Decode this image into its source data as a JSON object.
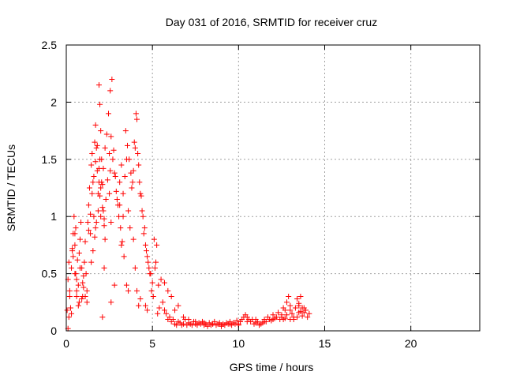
{
  "chart_data": {
    "type": "scatter",
    "title": "Day 031 of 2016, SRMTID for receiver cruz",
    "xlabel": "GPS time / hours",
    "ylabel": "SRMTID / TECUs",
    "xlim": [
      0,
      24
    ],
    "ylim": [
      0,
      2.5
    ],
    "xticks": [
      0,
      5,
      10,
      15,
      20
    ],
    "xtick_labels": [
      "0",
      "5",
      "10",
      "15",
      "20"
    ],
    "yticks": [
      0,
      0.5,
      1,
      1.5,
      2,
      2.5
    ],
    "ytick_labels": [
      "0",
      "0.5",
      "1",
      "1.5",
      "2",
      "2.5"
    ],
    "grid": true,
    "marker": "+",
    "series": [
      {
        "name": "SRMTID",
        "color": "#ff0000",
        "x": [
          0.05,
          0.1,
          0.15,
          0.2,
          0.25,
          0.3,
          0.35,
          0.4,
          0.45,
          0.5,
          0.55,
          0.6,
          0.65,
          0.7,
          0.75,
          0.8,
          0.85,
          0.9,
          0.95,
          1.0,
          0.1,
          0.2,
          0.3,
          0.4,
          0.5,
          0.6,
          0.7,
          0.8,
          0.9,
          1.0,
          0.15,
          0.35,
          0.55,
          0.75,
          0.95,
          1.05,
          1.1,
          1.15,
          1.2,
          1.25,
          1.3,
          1.35,
          1.4,
          1.45,
          1.5,
          1.55,
          1.6,
          1.65,
          1.7,
          1.75,
          1.8,
          1.85,
          1.9,
          1.95,
          2.0,
          2.05,
          2.1,
          2.15,
          2.2,
          2.25,
          1.3,
          1.4,
          1.5,
          1.6,
          1.7,
          1.8,
          1.9,
          2.0,
          2.1,
          2.2,
          2.3,
          2.4,
          2.5,
          2.6,
          2.7,
          2.8,
          2.9,
          3.0,
          3.1,
          3.2,
          1.45,
          1.55,
          1.65,
          1.75,
          1.85,
          1.95,
          2.05,
          2.15,
          2.25,
          2.35,
          2.45,
          2.55,
          2.65,
          2.75,
          2.85,
          2.95,
          3.05,
          3.15,
          3.25,
          3.35,
          3.3,
          3.4,
          3.5,
          3.6,
          3.7,
          3.8,
          3.9,
          4.0,
          4.1,
          4.2,
          4.3,
          4.4,
          4.5,
          4.6,
          4.7,
          4.8,
          4.9,
          5.0,
          5.1,
          5.2,
          3.45,
          3.55,
          3.65,
          3.75,
          3.85,
          3.95,
          4.05,
          4.15,
          4.25,
          4.35,
          4.45,
          4.55,
          4.65,
          4.75,
          4.85,
          4.95,
          5.05,
          5.15,
          5.25,
          5.35,
          1.9,
          1.95,
          2.0,
          2.5,
          2.55,
          2.6,
          3.1,
          3.2,
          3.3,
          3.9,
          4.0,
          4.1,
          1.7,
          2.2,
          2.8,
          3.6,
          4.3,
          4.6,
          5.4,
          5.5,
          0.5,
          0.6,
          1.1,
          1.2,
          2.1,
          2.6,
          3.5,
          4.2,
          4.7,
          5.3,
          5.6,
          5.7,
          5.8,
          5.9,
          6.0,
          6.1,
          6.2,
          6.3,
          6.4,
          6.5,
          6.6,
          6.7,
          6.8,
          6.9,
          7.0,
          7.1,
          7.2,
          7.3,
          7.4,
          7.5,
          7.6,
          7.7,
          7.8,
          7.9,
          8.0,
          8.1,
          8.2,
          8.3,
          8.4,
          8.5,
          8.6,
          8.7,
          8.8,
          8.9,
          9.0,
          9.1,
          9.2,
          9.3,
          9.4,
          9.5,
          9.6,
          9.7,
          9.8,
          9.9,
          10.0,
          10.1,
          10.2,
          10.3,
          10.4,
          10.5,
          10.6,
          10.7,
          10.8,
          10.9,
          11.0,
          11.1,
          11.2,
          11.3,
          11.4,
          11.5,
          11.6,
          11.7,
          11.8,
          11.9,
          12.0,
          12.1,
          12.2,
          12.3,
          12.4,
          12.5,
          12.6,
          12.7,
          12.8,
          12.9,
          13.0,
          13.1,
          13.2,
          13.3,
          13.4,
          13.5,
          13.6,
          13.7,
          13.8,
          13.9,
          14.0,
          14.1,
          12.6,
          12.8,
          13.0,
          13.4,
          13.5,
          13.6,
          13.7,
          12.7,
          13.2,
          13.8,
          5.7,
          5.9,
          6.1,
          6.3,
          6.5,
          6.8,
          7.1,
          7.5,
          8.0,
          8.5,
          9.0,
          9.5,
          10.0,
          10.5,
          11.0,
          11.5,
          12.0,
          12.5,
          13.0,
          13.5
        ],
        "y": [
          0.18,
          0.45,
          0.6,
          0.35,
          0.2,
          0.55,
          0.7,
          0.85,
          1.0,
          0.75,
          0.5,
          0.3,
          0.62,
          0.4,
          0.25,
          0.8,
          0.95,
          0.55,
          0.3,
          0.48,
          0.02,
          0.3,
          0.15,
          0.65,
          0.85,
          0.45,
          0.22,
          0.55,
          0.28,
          0.38,
          0.12,
          0.72,
          0.9,
          0.68,
          0.42,
          0.6,
          0.78,
          0.5,
          0.35,
          0.95,
          1.1,
          1.25,
          0.85,
          1.45,
          1.55,
          1.3,
          1.0,
          1.65,
          1.8,
          1.6,
          1.4,
          1.2,
          2.15,
          1.98,
          1.75,
          1.5,
          1.28,
          1.05,
          0.92,
          0.8,
          0.88,
          1.02,
          1.2,
          1.35,
          1.48,
          1.62,
          1.42,
          1.25,
          1.08,
          0.98,
          1.15,
          1.32,
          1.55,
          1.7,
          1.5,
          1.38,
          1.22,
          1.1,
          1.3,
          1.45,
          0.6,
          0.7,
          0.82,
          0.95,
          1.05,
          1.18,
          1.3,
          1.42,
          1.6,
          1.72,
          1.9,
          2.1,
          2.2,
          1.58,
          1.35,
          1.15,
          1.0,
          0.9,
          0.78,
          0.65,
          1.2,
          1.35,
          1.5,
          1.05,
          0.9,
          1.25,
          1.4,
          1.6,
          1.85,
          1.45,
          1.2,
          1.05,
          0.85,
          0.75,
          0.65,
          0.55,
          0.5,
          0.42,
          0.8,
          0.6,
          1.75,
          1.62,
          1.5,
          1.38,
          1.3,
          1.65,
          1.9,
          1.55,
          1.3,
          1.18,
          1.0,
          0.9,
          0.7,
          0.6,
          0.5,
          0.35,
          0.3,
          0.55,
          0.75,
          0.4,
          1.3,
          1.5,
          1.0,
          1.2,
          1.4,
          0.95,
          1.1,
          0.75,
          1.0,
          0.8,
          0.55,
          0.35,
          0.9,
          0.55,
          0.4,
          0.35,
          0.28,
          0.22,
          0.2,
          0.45,
          0.5,
          0.35,
          0.3,
          0.25,
          0.12,
          0.25,
          0.4,
          0.22,
          0.18,
          0.15,
          0.25,
          0.18,
          0.15,
          0.1,
          0.12,
          0.08,
          0.1,
          0.06,
          0.05,
          0.08,
          0.07,
          0.05,
          0.06,
          0.1,
          0.05,
          0.07,
          0.06,
          0.05,
          0.08,
          0.06,
          0.05,
          0.07,
          0.06,
          0.08,
          0.05,
          0.06,
          0.04,
          0.07,
          0.05,
          0.06,
          0.08,
          0.05,
          0.06,
          0.07,
          0.04,
          0.06,
          0.05,
          0.07,
          0.06,
          0.08,
          0.05,
          0.07,
          0.06,
          0.09,
          0.06,
          0.08,
          0.1,
          0.12,
          0.14,
          0.12,
          0.1,
          0.08,
          0.1,
          0.06,
          0.07,
          0.08,
          0.05,
          0.06,
          0.07,
          0.1,
          0.08,
          0.12,
          0.1,
          0.09,
          0.14,
          0.11,
          0.12,
          0.16,
          0.1,
          0.12,
          0.2,
          0.18,
          0.25,
          0.3,
          0.22,
          0.15,
          0.12,
          0.2,
          0.28,
          0.24,
          0.3,
          0.2,
          0.16,
          0.18,
          0.12,
          0.15,
          0.1,
          0.14,
          0.18,
          0.12,
          0.22,
          0.17,
          0.13,
          0.11,
          0.1,
          0.2,
          0.42,
          0.35,
          0.3,
          0.18,
          0.22,
          0.12,
          0.1,
          0.08,
          0.07,
          0.06,
          0.05,
          0.06,
          0.05,
          0.08,
          0.1,
          0.08,
          0.1,
          0.14,
          0.1,
          0.16
        ]
      }
    ]
  }
}
